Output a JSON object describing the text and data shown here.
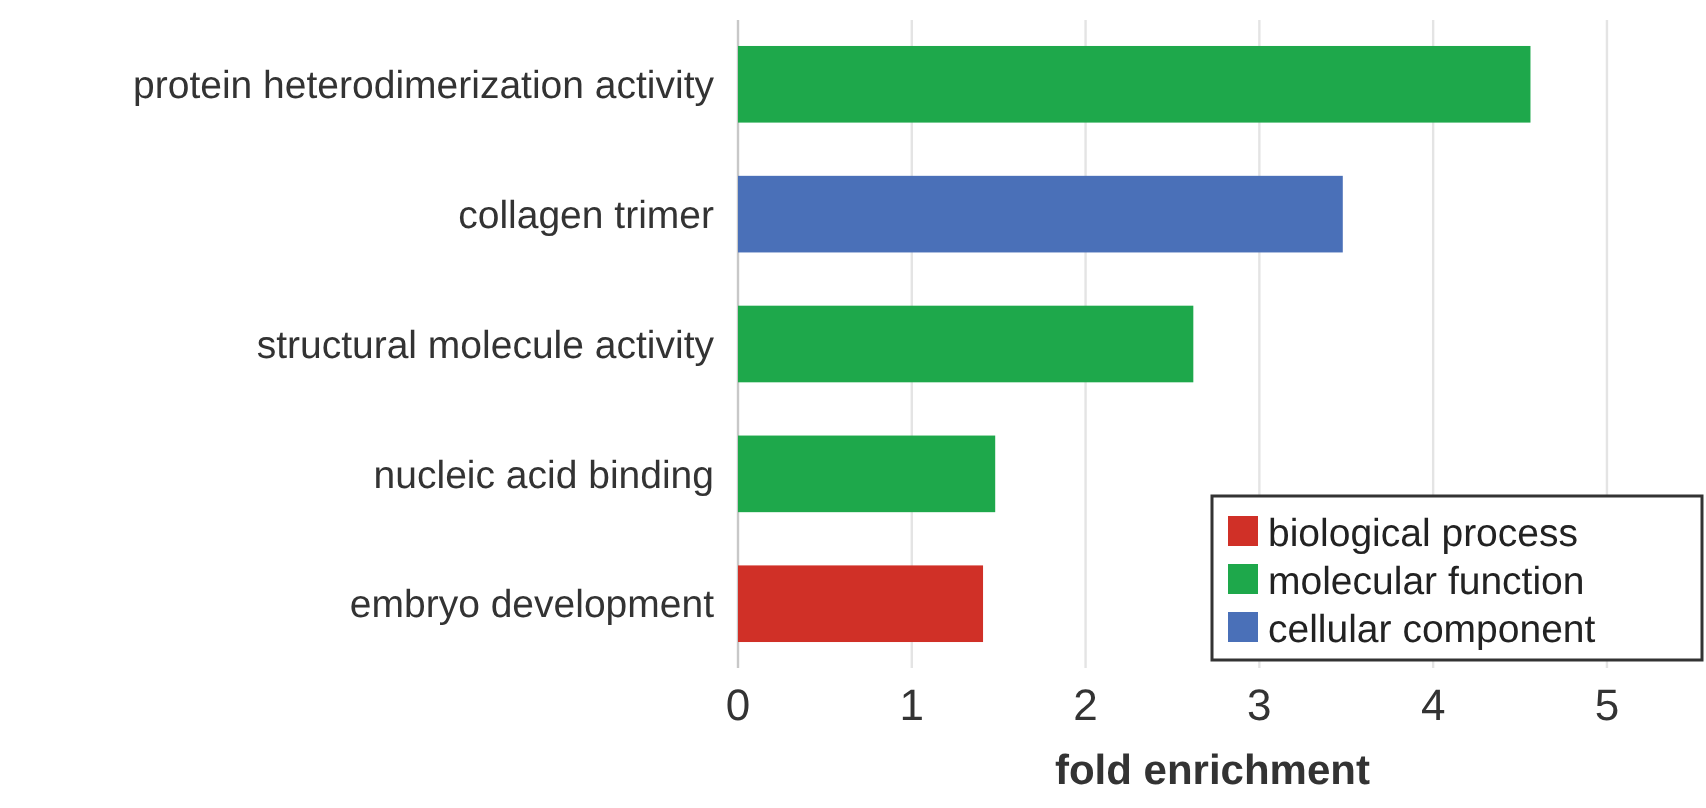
{
  "chart_data": {
    "type": "bar",
    "orientation": "horizontal",
    "xlabel": "fold enrichment",
    "categories": [
      "protein heterodimerization activity",
      "collagen trimer",
      "structural molecule activity",
      "nucleic acid binding",
      "embryo development"
    ],
    "series": [
      {
        "name": "biological process",
        "color": "#d03027",
        "values": [
          null,
          null,
          null,
          null,
          1.41
        ]
      },
      {
        "name": "molecular function",
        "color": "#1ea84b",
        "values": [
          4.56,
          null,
          2.62,
          1.48,
          null
        ]
      },
      {
        "name": "cellular component",
        "color": "#4a70b8",
        "values": [
          null,
          3.48,
          null,
          null,
          null
        ]
      }
    ],
    "xlim": [
      0,
      5.57
    ],
    "xticks": [
      0,
      1,
      2,
      3,
      4,
      5
    ],
    "grid": "x",
    "legend": "bottom right"
  }
}
